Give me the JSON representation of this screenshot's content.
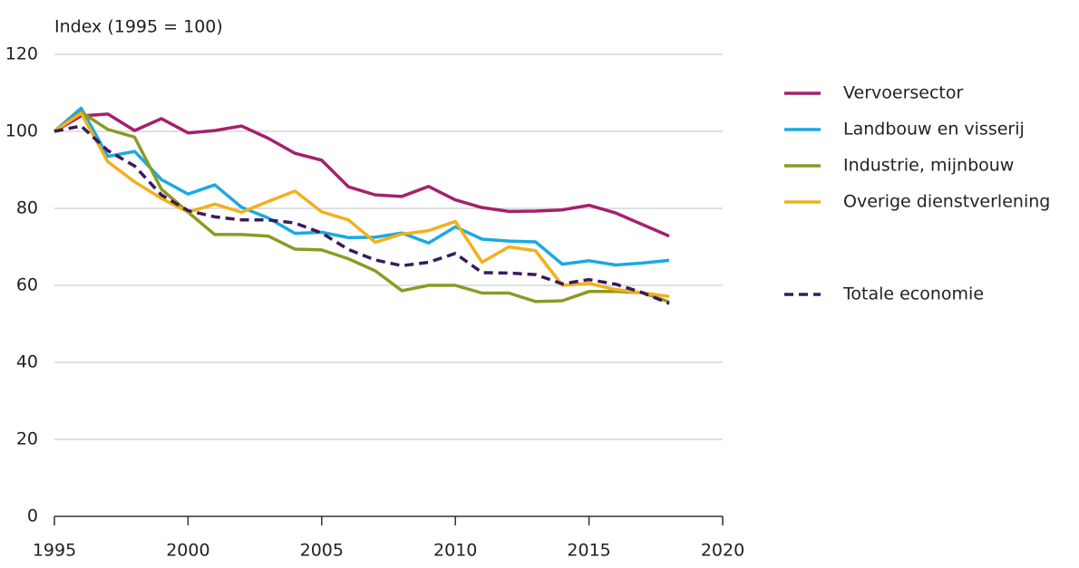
{
  "chart_data": {
    "type": "line",
    "ylabel": "Index (1995 = 100)",
    "x": [
      1995,
      1996,
      1997,
      1998,
      1999,
      2000,
      2001,
      2002,
      2003,
      2004,
      2005,
      2006,
      2007,
      2008,
      2009,
      2010,
      2011,
      2012,
      2013,
      2014,
      2015,
      2016,
      2017,
      2018
    ],
    "xlim": [
      1995,
      2020
    ],
    "xticks": [
      1995,
      2000,
      2005,
      2010,
      2015,
      2020
    ],
    "ylim": [
      0,
      120
    ],
    "yticks": [
      0,
      20,
      40,
      60,
      80,
      100,
      120
    ],
    "grid": true,
    "series": [
      {
        "name": "Vervoersector",
        "color": "#a4206e",
        "style": "solid",
        "values": [
          100,
          104,
          104.5,
          100.2,
          103.3,
          99.6,
          100.2,
          101.4,
          98.2,
          94.3,
          92.5,
          85.6,
          83.5,
          83.1,
          85.7,
          82.2,
          80.2,
          79.2,
          79.3,
          79.6,
          80.8,
          78.8,
          75.8,
          72.8
        ]
      },
      {
        "name": "Landbouw en visserij",
        "color": "#1ba9e2",
        "style": "solid",
        "values": [
          100,
          106,
          93.5,
          94.8,
          87.5,
          83.7,
          86.1,
          80.3,
          77.5,
          73.5,
          73.8,
          72.4,
          72.5,
          73.6,
          71,
          75.2,
          72,
          71.5,
          71.3,
          65.5,
          66.4,
          65.3,
          65.8,
          66.5
        ]
      },
      {
        "name": "Industrie, mijnbouw",
        "color": "#8c9a25",
        "style": "solid",
        "values": [
          100,
          105,
          100.5,
          98.5,
          85,
          79,
          73.2,
          73.2,
          72.8,
          69.4,
          69.2,
          66.9,
          63.8,
          58.6,
          60,
          60,
          58,
          58,
          55.8,
          56,
          58.4,
          58.4,
          58.1,
          55.7
        ]
      },
      {
        "name": "Overige dienstverlening",
        "color": "#f1b01c",
        "style": "solid",
        "values": [
          100,
          104.7,
          92.1,
          86.9,
          82.6,
          79,
          81.1,
          79,
          81.8,
          84.5,
          79.1,
          77,
          71.2,
          73.3,
          74.2,
          76.6,
          66,
          70,
          69,
          60,
          60.5,
          58.9,
          58.1,
          57.1
        ]
      },
      {
        "name": "Totale economie",
        "color": "#3b1a5c",
        "style": "dashed",
        "values": [
          100,
          101.4,
          95,
          91,
          83.5,
          79.4,
          77.8,
          77,
          77,
          76.2,
          73.6,
          69.3,
          66.6,
          65.1,
          66,
          68.3,
          63.3,
          63.2,
          62.8,
          60.4,
          61.5,
          60.3,
          58.1,
          55.3
        ]
      }
    ]
  }
}
